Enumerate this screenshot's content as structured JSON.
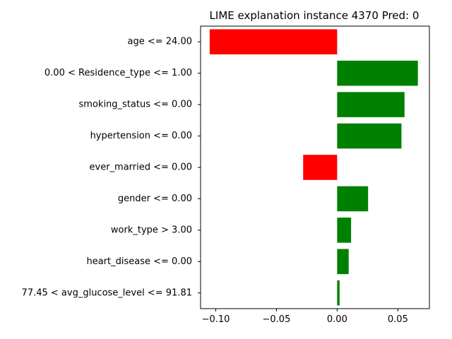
{
  "chart_data": {
    "type": "bar",
    "orientation": "horizontal",
    "title": "LIME explanation instance 4370 Pred: 0",
    "xlabel": "",
    "ylabel": "",
    "xlim": [
      -0.1125,
      0.076
    ],
    "xticks": [
      -0.1,
      -0.05,
      0.0,
      0.05
    ],
    "xtick_labels": [
      "−0.10",
      "−0.05",
      "0.00",
      "0.05"
    ],
    "grid": false,
    "categories": [
      "age <= 24.00",
      "0.00 < Residence_type <= 1.00",
      "smoking_status <= 0.00",
      "hypertension <= 0.00",
      "ever_married <= 0.00",
      "gender <= 0.00",
      "work_type > 3.00",
      "heart_disease <= 0.00",
      "77.45 < avg_glucose_level <= 91.81"
    ],
    "values": [
      -0.105,
      0.0665,
      0.0555,
      0.053,
      -0.028,
      0.0255,
      0.0115,
      0.0095,
      0.002
    ],
    "colors": {
      "positive": "#008000",
      "negative": "#ff0000"
    }
  }
}
